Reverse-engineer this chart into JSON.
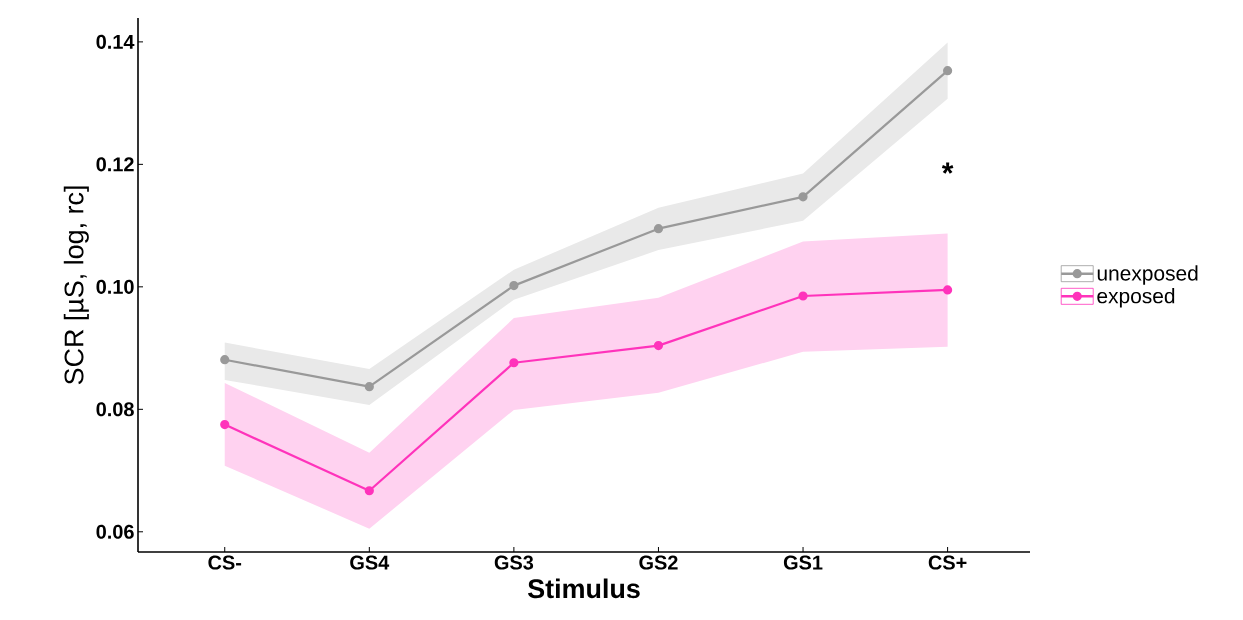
{
  "chart_data": {
    "type": "line",
    "xlabel": "Stimulus",
    "ylabel": "SCR [µS, log, rc]",
    "categories": [
      "CS-",
      "GS4",
      "GS3",
      "GS2",
      "GS1",
      "CS+"
    ],
    "series": [
      {
        "name": "unexposed",
        "color": "#999999",
        "values": [
          0.0881,
          0.0837,
          0.1002,
          0.1095,
          0.1147,
          0.1353
        ],
        "lower": [
          0.0848,
          0.0807,
          0.0979,
          0.106,
          0.1108,
          0.1307
        ],
        "upper": [
          0.0909,
          0.0866,
          0.1028,
          0.1129,
          0.1185,
          0.1399
        ]
      },
      {
        "name": "exposed",
        "color": "#ff33bb",
        "values": [
          0.0775,
          0.0667,
          0.0876,
          0.0904,
          0.0985,
          0.0995
        ],
        "lower": [
          0.0708,
          0.0605,
          0.0799,
          0.0827,
          0.0894,
          0.0902
        ],
        "upper": [
          0.0843,
          0.0729,
          0.0949,
          0.0982,
          0.1074,
          0.1087
        ]
      }
    ],
    "ylim": [
      0.0567,
      0.1439
    ],
    "yticks": [
      {
        "value": 0.06,
        "label": "0.06"
      },
      {
        "value": 0.08,
        "label": "0.08"
      },
      {
        "value": 0.1,
        "label": "0.10"
      },
      {
        "value": 0.12,
        "label": "0.12"
      },
      {
        "value": 0.14,
        "label": "0.14"
      }
    ],
    "annotations": [
      "*"
    ],
    "legend": "right",
    "marker": "circle",
    "line_style": "solid"
  }
}
